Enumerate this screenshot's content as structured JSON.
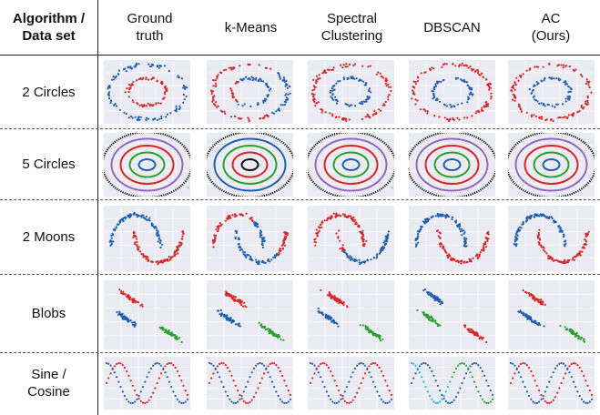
{
  "table": {
    "corner": "Algorithm /\nData set",
    "columns": [
      "Ground\ntruth",
      "k-Means",
      "Spectral\nClustering",
      "DBSCAN",
      "AC\n(Ours)"
    ],
    "rows": [
      "2 Circles",
      "5 Circles",
      "2 Moons",
      "Blobs",
      "Sine /\nCosine"
    ]
  },
  "colors": {
    "red": "#d62728",
    "blue": "#1f5fae",
    "green": "#2ca02c",
    "purple": "#9467bd",
    "black": "#111111",
    "cyan": "#17becf",
    "plot_bg": "#eaeaf2",
    "plot_grid": "#ffffff"
  },
  "panels": {
    "circles2": [
      {
        "outer": "blue",
        "inner": "red"
      },
      {
        "outer": "red",
        "inner": "blue",
        "mixed": true
      },
      {
        "outer": "red",
        "inner": "blue"
      },
      {
        "outer": "red",
        "inner": "blue"
      },
      {
        "outer": "red",
        "inner": "blue"
      }
    ],
    "circles5": [
      [
        "blue",
        "green",
        "red",
        "purple",
        "black"
      ],
      [
        "black",
        "red",
        "green",
        "blue",
        "black"
      ],
      [
        "blue",
        "green",
        "red",
        "purple",
        "black"
      ],
      [
        "blue",
        "green",
        "red",
        "purple",
        "black"
      ],
      [
        "blue",
        "green",
        "red",
        "purple",
        "black"
      ]
    ],
    "moons": [
      {
        "a": "blue",
        "b": "red"
      },
      {
        "a": "red",
        "b": "blue",
        "split": true
      },
      {
        "a": "red",
        "b": "blue",
        "split2": true
      },
      {
        "a": "blue",
        "b": "red"
      },
      {
        "a": "blue",
        "b": "red"
      }
    ],
    "blobs": [
      [
        "red",
        "blue",
        "green"
      ],
      [
        "red",
        "blue",
        "green"
      ],
      [
        "red",
        "blue",
        "green"
      ],
      [
        "blue",
        "green",
        "red"
      ],
      [
        "red",
        "blue",
        "green"
      ]
    ],
    "sine": [
      {
        "a": "red",
        "b": "blue"
      },
      {
        "a": "red",
        "b": "blue"
      },
      {
        "a": "red",
        "b": "blue"
      },
      {
        "a": "blue",
        "b": "cyan",
        "c": "green"
      },
      {
        "a": "red",
        "b": "blue"
      }
    ]
  }
}
